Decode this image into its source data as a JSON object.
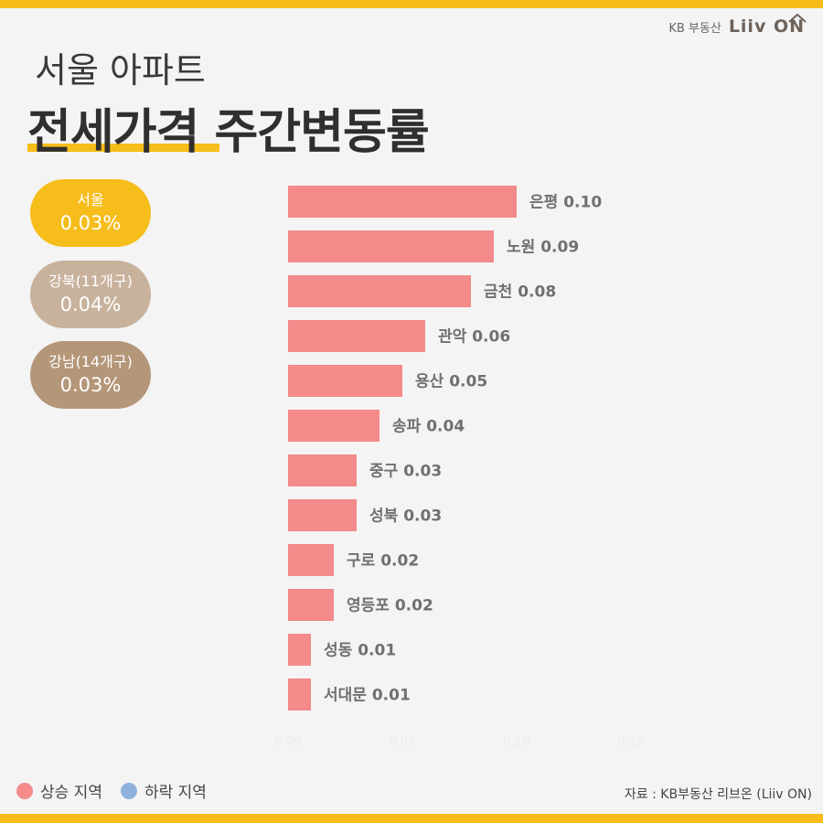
{
  "brand": {
    "kb": "KB 부동산",
    "liiv": "Liiv ON"
  },
  "header": {
    "title_line1": "서울 아파트",
    "title_line2": "전세가격 주간변동률"
  },
  "summary": [
    {
      "label": "서울",
      "value": "0.03%"
    },
    {
      "label": "강북(11개구)",
      "value": "0.04%"
    },
    {
      "label": "강남(14개구)",
      "value": "0.03%"
    }
  ],
  "legend": {
    "rise": "상승 지역",
    "fall": "하락 지역"
  },
  "colors": {
    "rise": "#f48a8a",
    "fall": "#8fb2dd",
    "accent": "#f6bd1b"
  },
  "source": "자료 : KB부동산 리브온 (Liiv ON)",
  "chart_data": {
    "type": "bar",
    "orientation": "horizontal",
    "categories": [
      "은평",
      "노원",
      "금천",
      "관악",
      "용산",
      "송파",
      "중구",
      "성북",
      "구로",
      "영등포",
      "성동",
      "서대문"
    ],
    "values": [
      0.1,
      0.09,
      0.08,
      0.06,
      0.05,
      0.04,
      0.03,
      0.03,
      0.02,
      0.02,
      0.01,
      0.01
    ],
    "data_labels": [
      "은평 0.10",
      "노원 0.09",
      "금천 0.08",
      "관악 0.06",
      "용산 0.05",
      "송파 0.04",
      "중구 0.03",
      "성북 0.03",
      "구로 0.02",
      "영등포 0.02",
      "성동 0.01",
      "서대문 0.01"
    ],
    "xlim": [
      0,
      0.15
    ],
    "xticks": [
      "0.00",
      "0.05",
      "0.10",
      "0.15"
    ],
    "grid": false
  }
}
